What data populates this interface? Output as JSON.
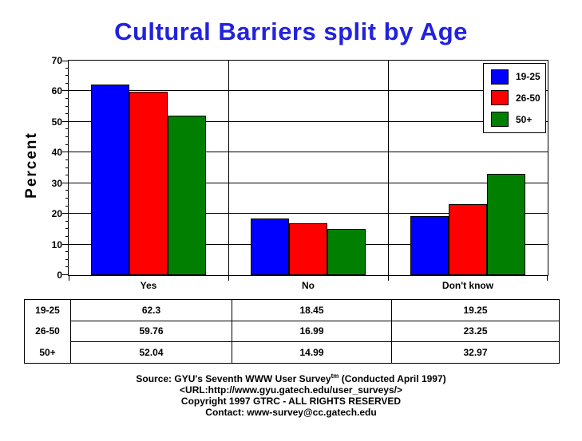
{
  "title": {
    "text": "Cultural Barriers split by Age",
    "color": "#2222DD"
  },
  "chart_data": {
    "type": "bar",
    "title": "Cultural Barriers split by Age",
    "xlabel": "",
    "ylabel": "Percent",
    "ylim": [
      0,
      70
    ],
    "ytick_step": 10,
    "minor_tick_step": 2.5,
    "yticks": [
      0,
      10,
      20,
      30,
      40,
      50,
      60,
      70
    ],
    "grid": true,
    "legend_position": "top-right",
    "categories": [
      "Yes",
      "No",
      "Don't know"
    ],
    "series": [
      {
        "name": "19-25",
        "color": "#0000FF",
        "values": [
          62.3,
          18.45,
          19.25
        ]
      },
      {
        "name": "26-50",
        "color": "#FF0000",
        "values": [
          59.76,
          16.99,
          23.25
        ]
      },
      {
        "name": "50+",
        "color": "#007F00",
        "values": [
          52.04,
          14.99,
          32.97
        ]
      }
    ]
  },
  "table": {
    "row_labels": [
      "19-25",
      "26-50",
      "50+"
    ],
    "rows": [
      [
        "62.3",
        "18.45",
        "19.25"
      ],
      [
        "59.76",
        "16.99",
        "23.25"
      ],
      [
        "52.04",
        "14.99",
        "32.97"
      ]
    ]
  },
  "footer": {
    "line1_prefix": "Source: GYU's Seventh WWW User Survey",
    "line1_sup": "tm",
    "line1_suffix": " (Conducted April 1997)",
    "line2": "<URL:http://www.gyu.gatech.edu/user_surveys/>",
    "line3": "Copyright 1997 GTRC - ALL RIGHTS RESERVED",
    "line4": "Contact: www-survey@cc.gatech.edu"
  }
}
